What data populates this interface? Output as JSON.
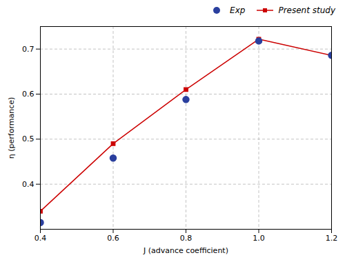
{
  "chart_data": {
    "type": "line",
    "x": [
      0.4,
      0.6,
      0.8,
      1.0,
      1.2
    ],
    "series": [
      {
        "name": "Exp",
        "type": "scatter",
        "color": "#2a3f9e",
        "marker": "circle",
        "values": [
          0.315,
          0.458,
          0.588,
          0.718,
          0.686
        ]
      },
      {
        "name": "Present study",
        "type": "line",
        "color": "#cc0000",
        "marker": "square",
        "line_style": "solid",
        "values": [
          0.34,
          0.49,
          0.61,
          0.722,
          0.686
        ]
      }
    ],
    "xlabel": "J (advance coefficient)",
    "ylabel": "η (performance)",
    "xlim": [
      0.4,
      1.2
    ],
    "ylim": [
      0.3,
      0.75
    ],
    "xticks": [
      0.4,
      0.6,
      0.8,
      {
        "value": 1.0,
        "label": "1.0"
      },
      1.2
    ],
    "yticks": [
      0.4,
      0.5,
      0.6,
      0.7
    ],
    "grid": true,
    "legend": "upper right"
  }
}
